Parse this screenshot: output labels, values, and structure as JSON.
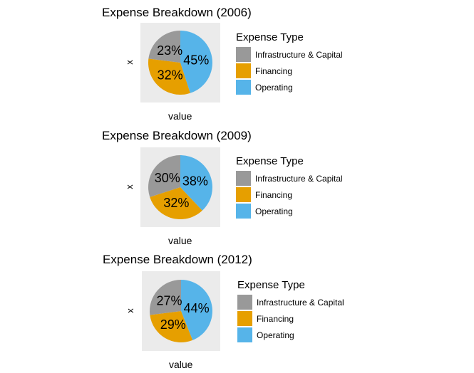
{
  "chart_data": [
    {
      "type": "pie",
      "title": "Expense Breakdown (2006)",
      "xlabel": "value",
      "ylabel": "x",
      "legend_title": "Expense Type",
      "legend_position": "right",
      "slices": [
        {
          "name": "Operating",
          "value": 45,
          "label": "45%",
          "color": "#56b4e9"
        },
        {
          "name": "Financing",
          "value": 32,
          "label": "32%",
          "color": "#e69f00"
        },
        {
          "name": "Infrastructure & Capital",
          "value": 23,
          "label": "23%",
          "color": "#999999"
        }
      ],
      "legend": [
        {
          "name": "Infrastructure & Capital",
          "color": "#999999"
        },
        {
          "name": "Financing",
          "color": "#e69f00"
        },
        {
          "name": "Operating",
          "color": "#56b4e9"
        }
      ]
    },
    {
      "type": "pie",
      "title": "Expense Breakdown (2009)",
      "xlabel": "value",
      "ylabel": "x",
      "legend_title": "Expense Type",
      "legend_position": "right",
      "slices": [
        {
          "name": "Operating",
          "value": 38,
          "label": "38%",
          "color": "#56b4e9"
        },
        {
          "name": "Financing",
          "value": 32,
          "label": "32%",
          "color": "#e69f00"
        },
        {
          "name": "Infrastructure & Capital",
          "value": 30,
          "label": "30%",
          "color": "#999999"
        }
      ],
      "legend": [
        {
          "name": "Infrastructure & Capital",
          "color": "#999999"
        },
        {
          "name": "Financing",
          "color": "#e69f00"
        },
        {
          "name": "Operating",
          "color": "#56b4e9"
        }
      ]
    },
    {
      "type": "pie",
      "title": "Expense Breakdown (2012)",
      "xlabel": "value",
      "ylabel": "x",
      "legend_title": "Expense Type",
      "legend_position": "right",
      "slices": [
        {
          "name": "Operating",
          "value": 44,
          "label": "44%",
          "color": "#56b4e9"
        },
        {
          "name": "Financing",
          "value": 29,
          "label": "29%",
          "color": "#e69f00"
        },
        {
          "name": "Infrastructure & Capital",
          "value": 27,
          "label": "27%",
          "color": "#999999"
        }
      ],
      "legend": [
        {
          "name": "Infrastructure & Capital",
          "color": "#999999"
        },
        {
          "name": "Financing",
          "color": "#e69f00"
        },
        {
          "name": "Operating",
          "color": "#56b4e9"
        }
      ]
    }
  ]
}
